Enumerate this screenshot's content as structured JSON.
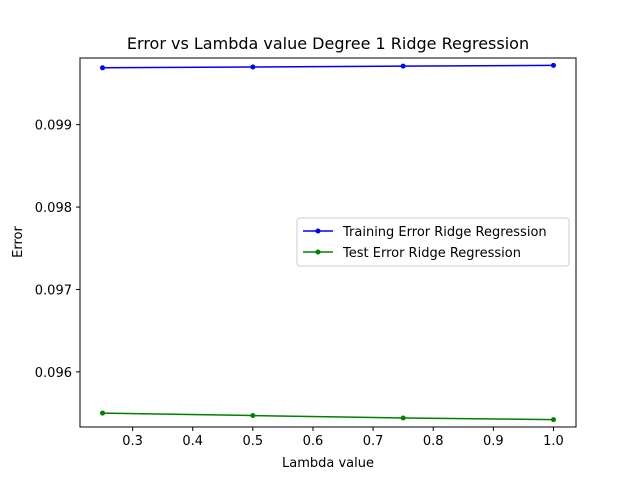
{
  "chart_data": {
    "type": "line",
    "title": "Error vs Lambda value Degree 1 Ridge Regression",
    "xlabel": "Lambda value",
    "ylabel": "Error",
    "x": [
      0.25,
      0.5,
      0.75,
      1.0
    ],
    "series": [
      {
        "name": "Training Error Ridge Regression",
        "color": "#0000ff",
        "values": [
          0.09969,
          0.0997,
          0.09971,
          0.09972
        ]
      },
      {
        "name": "Test Error Ridge Regression",
        "color": "#008000",
        "values": [
          0.0955,
          0.09547,
          0.09544,
          0.09542
        ]
      }
    ],
    "xlim": [
      0.2125,
      1.0375
    ],
    "ylim": [
      0.095331,
      0.099809
    ],
    "xticks": [
      0.3,
      0.4,
      0.5,
      0.6,
      0.7,
      0.8,
      0.9,
      1.0
    ],
    "xtick_labels": [
      "0.3",
      "0.4",
      "0.5",
      "0.6",
      "0.7",
      "0.8",
      "0.9",
      "1.0"
    ],
    "yticks": [
      0.096,
      0.097,
      0.098,
      0.099
    ],
    "ytick_labels": [
      "0.096",
      "0.097",
      "0.098",
      "0.099"
    ],
    "grid": false,
    "legend_position": "center-right"
  }
}
